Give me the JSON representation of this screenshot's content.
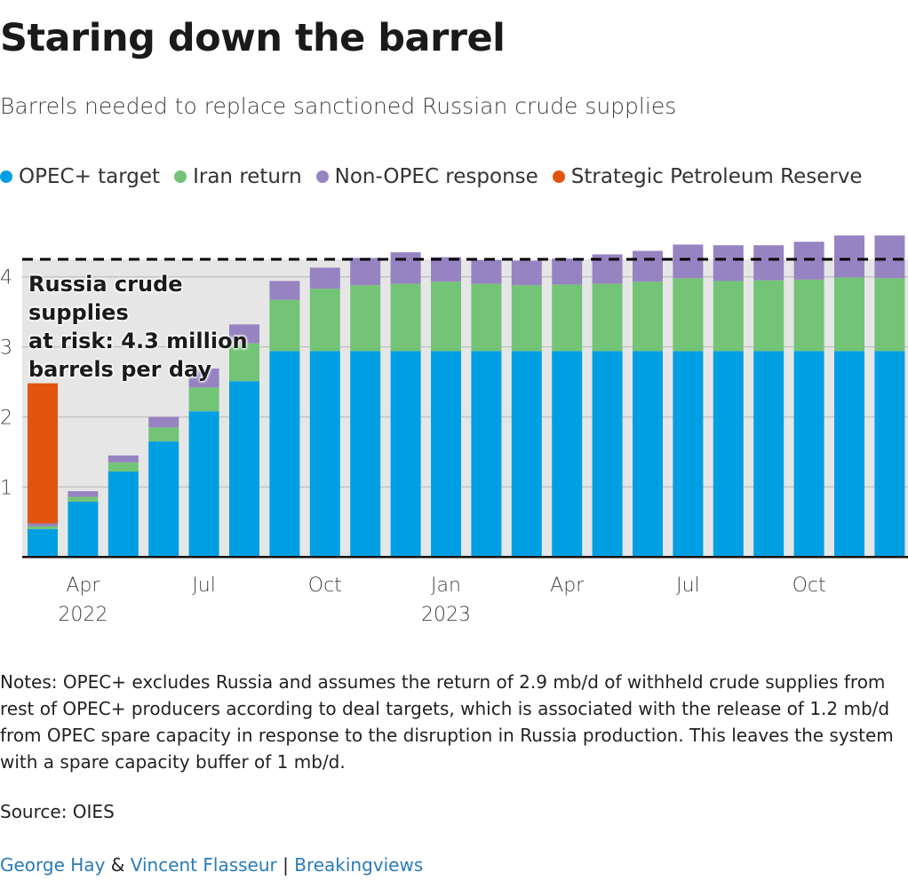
{
  "header": {
    "title": "Staring down the barrel",
    "subtitle": "Barrels needed to replace sanctioned Russian crude supplies"
  },
  "chart_data": {
    "type": "bar",
    "stacked": true,
    "categories": [
      "Mar 2022",
      "Apr 2022",
      "May 2022",
      "Jun 2022",
      "Jul 2022",
      "Aug 2022",
      "Sep 2022",
      "Oct 2022",
      "Nov 2022",
      "Dec 2022",
      "Jan 2023",
      "Feb 2023",
      "Mar 2023",
      "Apr 2023",
      "May 2023",
      "Jun 2023",
      "Jul 2023",
      "Aug 2023",
      "Sep 2023",
      "Oct 2023",
      "Nov 2023",
      "Dec 2023"
    ],
    "x_ticks": [
      {
        "index": 1,
        "label": "Apr",
        "year": "2022"
      },
      {
        "index": 4,
        "label": "Jul",
        "year": ""
      },
      {
        "index": 7,
        "label": "Oct",
        "year": ""
      },
      {
        "index": 10,
        "label": "Jan",
        "year": "2023"
      },
      {
        "index": 13,
        "label": "Apr",
        "year": ""
      },
      {
        "index": 16,
        "label": "Jul",
        "year": ""
      },
      {
        "index": 19,
        "label": "Oct",
        "year": ""
      }
    ],
    "y_ticks": [
      "1",
      "2",
      "3",
      "4"
    ],
    "ylim": [
      0,
      4.7
    ],
    "grid": true,
    "legend_position": "top",
    "series": [
      {
        "name": "OPEC+ target",
        "color": "#009fe3",
        "values": [
          0.4,
          0.79,
          1.22,
          1.65,
          2.08,
          2.51,
          2.94,
          2.94,
          2.94,
          2.94,
          2.94,
          2.94,
          2.94,
          2.94,
          2.94,
          2.94,
          2.94,
          2.94,
          2.94,
          2.94,
          2.94,
          2.94
        ]
      },
      {
        "name": "Iran return",
        "color": "#73c476",
        "values": [
          0.04,
          0.07,
          0.13,
          0.2,
          0.34,
          0.54,
          0.73,
          0.89,
          0.94,
          0.96,
          0.99,
          0.96,
          0.94,
          0.95,
          0.96,
          0.99,
          1.04,
          1.0,
          1.01,
          1.02,
          1.05,
          1.04
        ]
      },
      {
        "name": "Non-OPEC response",
        "color": "#9683c1",
        "values": [
          0.04,
          0.08,
          0.1,
          0.15,
          0.27,
          0.27,
          0.27,
          0.3,
          0.39,
          0.45,
          0.35,
          0.34,
          0.35,
          0.37,
          0.42,
          0.44,
          0.48,
          0.51,
          0.5,
          0.54,
          0.6,
          0.61
        ]
      },
      {
        "name": "Strategic Petroleum Reserve",
        "color": "#e3540e",
        "values": [
          2.0,
          0,
          0,
          0,
          0,
          0,
          0,
          0,
          0,
          0,
          0,
          0,
          0,
          0,
          0,
          0,
          0,
          0,
          0,
          0,
          0,
          0
        ]
      }
    ],
    "reference_line": {
      "value": 4.3,
      "label": "Russia crude supplies at risk: 4.3 million barrels per day",
      "lines": [
        "Russia crude supplies",
        "at risk: 4.3 million",
        "barrels per day"
      ]
    }
  },
  "notes": "Notes: OPEC+ excludes Russia and assumes the return of 2.9 mb/d of withheld crude supplies from rest of OPEC+ producers according to deal targets, which is associated with the release of 1.2 mb/d from OPEC spare capacity in response to the disruption in Russia production. This leaves the system with a spare capacity buffer of 1 mb/d.",
  "source": "Source: OIES",
  "footer": {
    "author1": "George Hay",
    "amp": "&",
    "author2": "Vincent Flasseur",
    "sep": "|",
    "outlet": "Breakingviews"
  }
}
